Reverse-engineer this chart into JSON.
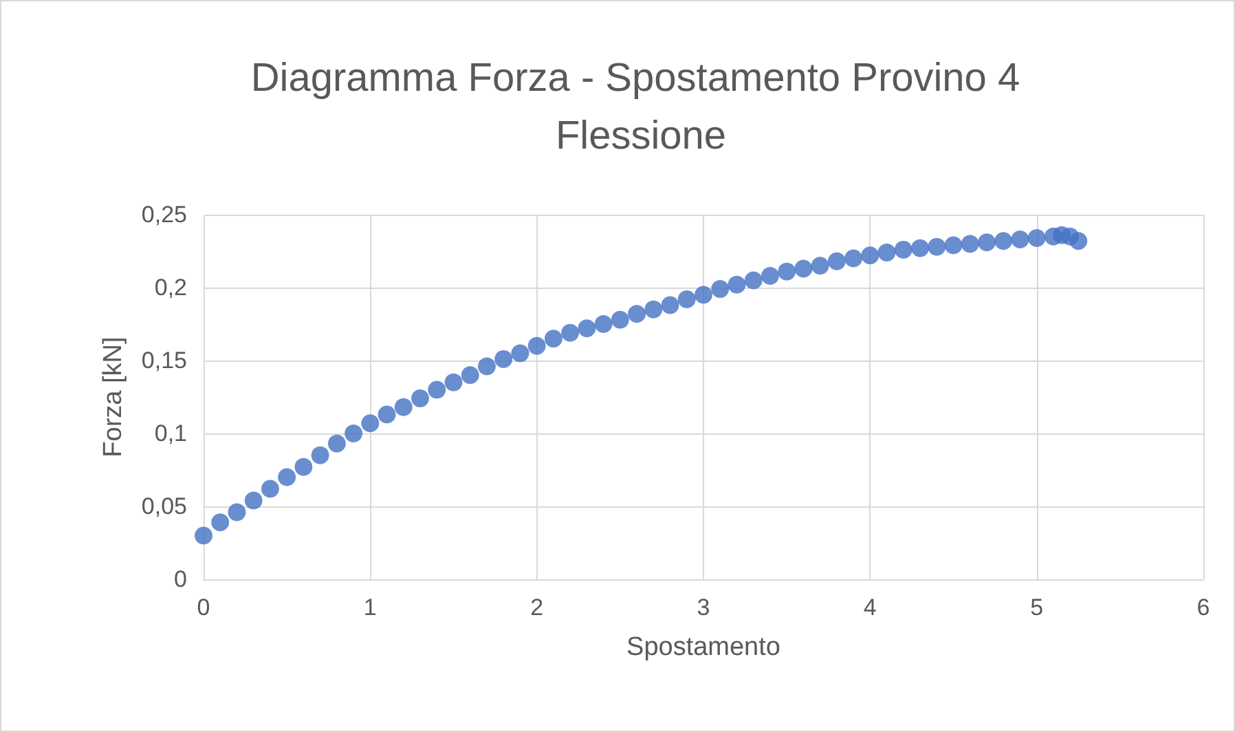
{
  "chart_data": {
    "type": "scatter",
    "title": "Diagramma Forza - Spostamento Provino 4 Flessione",
    "xlabel": "Spostamento",
    "ylabel": "Forza [kN]",
    "x": [
      0,
      0.1,
      0.2,
      0.3,
      0.4,
      0.5,
      0.6,
      0.7,
      0.8,
      0.9,
      1.0,
      1.1,
      1.2,
      1.3,
      1.4,
      1.5,
      1.6,
      1.7,
      1.8,
      1.9,
      2.0,
      2.1,
      2.2,
      2.3,
      2.4,
      2.5,
      2.6,
      2.7,
      2.8,
      2.9,
      3.0,
      3.1,
      3.2,
      3.3,
      3.4,
      3.5,
      3.6,
      3.7,
      3.8,
      3.9,
      4.0,
      4.1,
      4.2,
      4.3,
      4.4,
      4.5,
      4.6,
      4.7,
      4.8,
      4.9,
      5.0,
      5.1,
      5.15,
      5.2,
      5.25
    ],
    "series": [
      {
        "color": "#4472c4",
        "values": [
          0.03,
          0.039,
          0.046,
          0.054,
          0.062,
          0.07,
          0.077,
          0.085,
          0.093,
          0.1,
          0.107,
          0.113,
          0.118,
          0.124,
          0.13,
          0.135,
          0.14,
          0.146,
          0.151,
          0.155,
          0.16,
          0.165,
          0.169,
          0.172,
          0.175,
          0.178,
          0.182,
          0.185,
          0.188,
          0.192,
          0.195,
          0.199,
          0.202,
          0.205,
          0.208,
          0.211,
          0.213,
          0.215,
          0.218,
          0.22,
          0.222,
          0.224,
          0.226,
          0.227,
          0.228,
          0.229,
          0.23,
          0.231,
          0.232,
          0.233,
          0.234,
          0.235,
          0.236,
          0.235,
          0.232
        ]
      }
    ],
    "xlim": [
      0,
      6
    ],
    "xticks": [
      0,
      1,
      2,
      3,
      4,
      5,
      6
    ],
    "ylim": [
      0,
      0.25
    ],
    "yticks": [
      0,
      {
        "value": 0.05,
        "label": "0,05"
      },
      {
        "value": 0.1,
        "label": "0,1"
      },
      {
        "value": 0.15,
        "label": "0,15"
      },
      {
        "value": 0.2,
        "label": "0,2"
      },
      {
        "value": 0.25,
        "label": "0,25"
      }
    ],
    "grid": true,
    "marker": "circle"
  }
}
